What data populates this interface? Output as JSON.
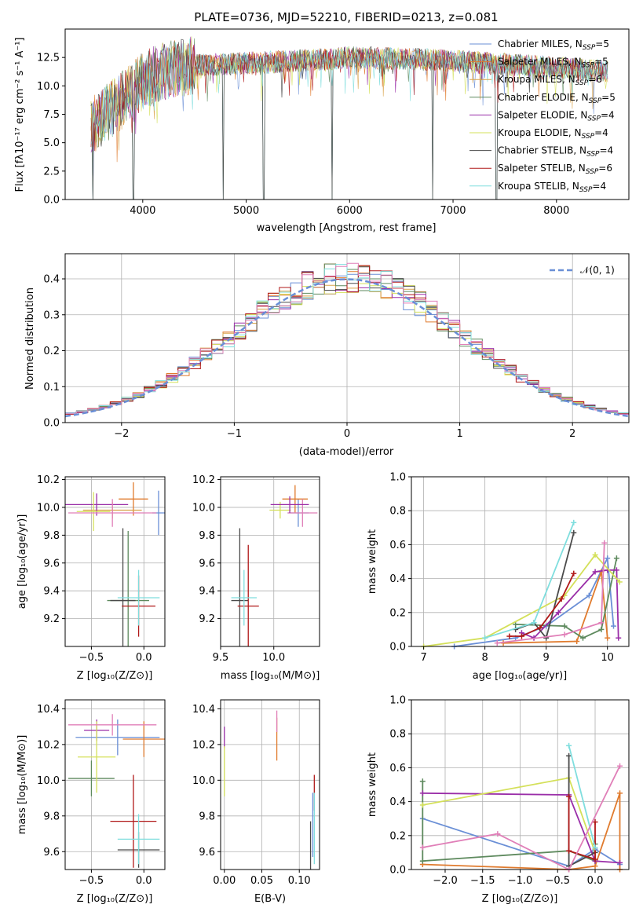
{
  "figure": {
    "title": "PLATE=0736, MJD=52210, FIBERID=0213, z=0.081"
  },
  "colors": [
    "#6a8fd6",
    "#e07b2e",
    "#d9a34a",
    "#5e8a5e",
    "#9a2ea8",
    "#d4e05a",
    "#4a4a4a",
    "#b01818",
    "#7fdede",
    "#e07fb8"
  ],
  "chart_data": [
    {
      "type": "line",
      "id": "spectrum",
      "title": "PLATE=0736, MJD=52210, FIBERID=0213, z=0.081",
      "xlabel": "wavelength [Angstrom, rest frame]",
      "ylabel": "Flux [fλ10⁻¹⁷ erg cm⁻² s⁻¹ A⁻¹]",
      "xlim": [
        3250,
        8700
      ],
      "ylim": [
        0,
        15
      ],
      "xticks": [
        "4000",
        "5000",
        "6000",
        "7000",
        "8000"
      ],
      "yticks": [
        "0.0",
        "2.5",
        "5.0",
        "7.5",
        "10.0",
        "12.5"
      ],
      "legend_position": "top-right",
      "series": [
        {
          "name": "Chabrier MILES, N_SSP=5",
          "label": "Chabrier MILES, N",
          "sub": "SSP",
          "suffix": "=5",
          "color": "#6a8fd6"
        },
        {
          "name": "Salpeter MILES, N_SSP=5",
          "label": "Salpeter MILES, N",
          "sub": "SSP",
          "suffix": "=5",
          "color": "#e07b2e"
        },
        {
          "name": "Kroupa MILES, N_SSP=6",
          "label": "Kroupa MILES, N",
          "sub": "SSP",
          "suffix": "=6",
          "color": "#d9a34a"
        },
        {
          "name": "Chabrier ELODIE, N_SSP=5",
          "label": "Chabrier ELODIE, N",
          "sub": "SSP",
          "suffix": "=5",
          "color": "#5e8a5e"
        },
        {
          "name": "Salpeter ELODIE, N_SSP=4",
          "label": "Salpeter ELODIE, N",
          "sub": "SSP",
          "suffix": "=4",
          "color": "#9a2ea8"
        },
        {
          "name": "Kroupa ELODIE, N_SSP=4",
          "label": "Kroupa ELODIE, N",
          "sub": "SSP",
          "suffix": "=4",
          "color": "#d4e05a"
        },
        {
          "name": "Chabrier STELIB, N_SSP=4",
          "label": "Chabrier STELIB, N",
          "sub": "SSP",
          "suffix": "=4",
          "color": "#4a4a4a"
        },
        {
          "name": "Salpeter STELIB, N_SSP=6",
          "label": "Salpeter STELIB, N",
          "sub": "SSP",
          "suffix": "=6",
          "color": "#b01818"
        },
        {
          "name": "Kroupa STELIB, N_SSP=4",
          "label": "Kroupa STELIB, N",
          "sub": "SSP",
          "suffix": "=4",
          "color": "#7fdede"
        }
      ],
      "continuum": [
        [
          3500,
          6.5
        ],
        [
          3700,
          8.0
        ],
        [
          3900,
          9.5
        ],
        [
          4000,
          10.5
        ],
        [
          4200,
          11.3
        ],
        [
          4500,
          11.8
        ],
        [
          5000,
          12.0
        ],
        [
          5500,
          12.2
        ],
        [
          6000,
          12.5
        ],
        [
          6500,
          12.4
        ],
        [
          7000,
          12.2
        ],
        [
          7500,
          11.9
        ],
        [
          8000,
          11.6
        ],
        [
          8500,
          11.3
        ]
      ],
      "spikes": [
        3520,
        3910,
        4780,
        5170,
        5830,
        6800,
        7420
      ]
    },
    {
      "type": "histogram",
      "id": "residuals",
      "xlabel": "(data-model)/error",
      "ylabel": "Normed distribution",
      "xlim": [
        -2.5,
        2.5
      ],
      "ylim": [
        0,
        0.47
      ],
      "xticks": [
        "−2",
        "−1",
        "0",
        "1",
        "2"
      ],
      "yticks": [
        "0.0",
        "0.1",
        "0.2",
        "0.3",
        "0.4"
      ],
      "legend": "𝒩(0, 1)",
      "legend_position": "top-right",
      "normal_curve": {
        "mean": 0,
        "sigma": 1
      }
    },
    {
      "type": "scatter",
      "id": "age-vs-Z",
      "xlabel": "Z [log₁₀(Z/Z⊙)]",
      "ylabel": "age  [log₁₀(age/yr)]",
      "xlim": [
        -0.75,
        0.2
      ],
      "ylim": [
        9.0,
        10.22
      ],
      "xticks": [
        "−0.5",
        "0.0"
      ],
      "yticks": [
        "9.2",
        "9.4",
        "9.6",
        "9.8",
        "10.0",
        "10.2"
      ],
      "points": [
        {
          "x": 0.14,
          "y": 9.96,
          "ex": 0.06,
          "ey": 0.16,
          "color": "#6a8fd6"
        },
        {
          "x": -0.1,
          "y": 10.06,
          "ex": 0.14,
          "ey": 0.12,
          "color": "#e07b2e"
        },
        {
          "x": -0.3,
          "y": 9.98,
          "ex": 0.28,
          "ey": 0.06,
          "color": "#d9a34a"
        },
        {
          "x": -0.15,
          "y": 9.33,
          "ex": 0.2,
          "ey": 0.5,
          "color": "#5e8a5e"
        },
        {
          "x": -0.45,
          "y": 10.02,
          "ex": 0.3,
          "ey": 0.08,
          "color": "#9a2ea8"
        },
        {
          "x": -0.48,
          "y": 9.97,
          "ex": 0.16,
          "ey": 0.14,
          "color": "#d4e05a"
        },
        {
          "x": -0.2,
          "y": 9.33,
          "ex": 0.12,
          "ey": 0.52,
          "color": "#4a4a4a"
        },
        {
          "x": -0.05,
          "y": 9.29,
          "ex": 0.16,
          "ey": 0.22,
          "color": "#b01818"
        },
        {
          "x": -0.05,
          "y": 9.35,
          "ex": 0.2,
          "ey": 0.2,
          "color": "#7fdede"
        },
        {
          "x": -0.3,
          "y": 9.96,
          "ex": 0.42,
          "ey": 0.1,
          "color": "#e07fb8"
        }
      ]
    },
    {
      "type": "scatter",
      "id": "age-vs-mass",
      "xlabel": "mass [log₁₀(M/M⊙)]",
      "ylabel": "",
      "xlim": [
        9.5,
        10.43
      ],
      "ylim": [
        9.0,
        10.22
      ],
      "xticks": [
        "9.5",
        "10.0"
      ],
      "yticks": [
        "9.2",
        "9.4",
        "9.6",
        "9.8",
        "10.0",
        "10.2"
      ],
      "points": [
        {
          "x": 10.23,
          "y": 9.96,
          "ex": 0.1,
          "ey": 0.1,
          "color": "#6a8fd6"
        },
        {
          "x": 10.2,
          "y": 10.06,
          "ex": 0.12,
          "ey": 0.1,
          "color": "#e07b2e"
        },
        {
          "x": 10.06,
          "y": 9.98,
          "ex": 0.1,
          "ey": 0.06,
          "color": "#d4e05a"
        },
        {
          "x": 9.68,
          "y": 9.33,
          "ex": 0.08,
          "ey": 0.52,
          "color": "#4a4a4a"
        },
        {
          "x": 9.76,
          "y": 9.29,
          "ex": 0.1,
          "ey": 0.44,
          "color": "#b01818"
        },
        {
          "x": 9.72,
          "y": 9.35,
          "ex": 0.12,
          "ey": 0.2,
          "color": "#7fdede"
        },
        {
          "x": 10.27,
          "y": 9.96,
          "ex": 0.14,
          "ey": 0.1,
          "color": "#e07fb8"
        },
        {
          "x": 10.15,
          "y": 10.02,
          "ex": 0.18,
          "ey": 0.06,
          "color": "#9a2ea8"
        }
      ]
    },
    {
      "type": "line",
      "id": "massweight-vs-age",
      "xlabel": "age  [log₁₀(age/yr)]",
      "ylabel": "mass weight",
      "xlim": [
        6.8,
        10.35
      ],
      "ylim": [
        0,
        1.0
      ],
      "xticks": [
        "7",
        "8",
        "9",
        "10"
      ],
      "yticks": [
        "0.0",
        "0.2",
        "0.4",
        "0.6",
        "0.8",
        "1.0"
      ],
      "series": [
        {
          "color": "#6a8fd6",
          "points": [
            [
              7.5,
              0.0
            ],
            [
              8.5,
              0.05
            ],
            [
              9.0,
              0.12
            ],
            [
              9.7,
              0.3
            ],
            [
              10.0,
              0.52
            ],
            [
              10.1,
              0.12
            ]
          ]
        },
        {
          "color": "#e07b2e",
          "points": [
            [
              8.3,
              0.02
            ],
            [
              9.5,
              0.03
            ],
            [
              9.9,
              0.44
            ],
            [
              10.0,
              0.05
            ]
          ]
        },
        {
          "color": "#5e8a5e",
          "points": [
            [
              8.5,
              0.13
            ],
            [
              9.3,
              0.12
            ],
            [
              9.6,
              0.05
            ],
            [
              9.9,
              0.1
            ],
            [
              10.15,
              0.52
            ]
          ]
        },
        {
          "color": "#9a2ea8",
          "points": [
            [
              8.6,
              0.08
            ],
            [
              8.8,
              0.05
            ],
            [
              9.2,
              0.2
            ],
            [
              9.8,
              0.44
            ],
            [
              10.0,
              0.45
            ],
            [
              10.15,
              0.45
            ],
            [
              10.18,
              0.05
            ]
          ]
        },
        {
          "color": "#d4e05a",
          "points": [
            [
              7.0,
              0.0
            ],
            [
              8.0,
              0.05
            ],
            [
              9.3,
              0.3
            ],
            [
              9.8,
              0.54
            ],
            [
              10.2,
              0.38
            ]
          ]
        },
        {
          "color": "#4a4a4a",
          "points": [
            [
              8.5,
              0.1
            ],
            [
              8.8,
              0.14
            ],
            [
              9.0,
              0.05
            ],
            [
              9.45,
              0.67
            ]
          ]
        },
        {
          "color": "#b01818",
          "points": [
            [
              8.4,
              0.06
            ],
            [
              8.6,
              0.06
            ],
            [
              8.9,
              0.11
            ],
            [
              9.25,
              0.28
            ],
            [
              9.45,
              0.43
            ]
          ]
        },
        {
          "color": "#7fdede",
          "points": [
            [
              8.0,
              0.05
            ],
            [
              8.8,
              0.14
            ],
            [
              9.45,
              0.73
            ]
          ]
        },
        {
          "color": "#e07fb8",
          "points": [
            [
              8.2,
              0.02
            ],
            [
              9.3,
              0.07
            ],
            [
              9.9,
              0.14
            ],
            [
              9.95,
              0.61
            ]
          ]
        }
      ]
    },
    {
      "type": "scatter",
      "id": "mass-vs-Z",
      "xlabel": "Z [log₁₀(Z/Z⊙)]",
      "ylabel": "mass [log₁₀(M/M⊙)]",
      "xlim": [
        -0.75,
        0.2
      ],
      "ylim": [
        9.5,
        10.45
      ],
      "xticks": [
        "−0.5",
        "0.0"
      ],
      "yticks": [
        "9.6",
        "9.8",
        "10.0",
        "10.2",
        "10.4"
      ],
      "points": [
        {
          "x": -0.25,
          "y": 10.24,
          "ex": 0.4,
          "ey": 0.1,
          "color": "#6a8fd6"
        },
        {
          "x": 0.0,
          "y": 10.23,
          "ex": 0.2,
          "ey": 0.1,
          "color": "#e07b2e"
        },
        {
          "x": -0.5,
          "y": 10.01,
          "ex": 0.22,
          "ey": 0.1,
          "color": "#5e8a5e"
        },
        {
          "x": -0.45,
          "y": 10.28,
          "ex": 0.12,
          "ey": 0.06,
          "color": "#9a2ea8"
        },
        {
          "x": -0.45,
          "y": 10.13,
          "ex": 0.18,
          "ey": 0.2,
          "color": "#d4e05a"
        },
        {
          "x": -0.05,
          "y": 9.61,
          "ex": 0.2,
          "ey": 0.1,
          "color": "#4a4a4a"
        },
        {
          "x": -0.1,
          "y": 9.77,
          "ex": 0.22,
          "ey": 0.26,
          "color": "#b01818"
        },
        {
          "x": -0.05,
          "y": 9.67,
          "ex": 0.2,
          "ey": 0.14,
          "color": "#7fdede"
        },
        {
          "x": -0.3,
          "y": 10.31,
          "ex": 0.42,
          "ey": 0.06,
          "color": "#e07fb8"
        }
      ]
    },
    {
      "type": "scatter",
      "id": "mass-vs-ebv",
      "xlabel": "E(B-V)",
      "ylabel": "",
      "xlim": [
        -0.005,
        0.127
      ],
      "ylim": [
        9.5,
        10.45
      ],
      "xticks": [
        "0.00",
        "0.05",
        "0.10"
      ],
      "yticks": [
        "9.6",
        "9.8",
        "10.0",
        "10.2",
        "10.4"
      ],
      "points": [
        {
          "x": 0.0,
          "y": 10.24,
          "ey": 0.06,
          "color": "#9a2ea8"
        },
        {
          "x": 0.0,
          "y": 10.05,
          "ey": 0.14,
          "color": "#d4e05a"
        },
        {
          "x": 0.07,
          "y": 10.23,
          "ey": 0.12,
          "color": "#e07b2e"
        },
        {
          "x": 0.07,
          "y": 10.33,
          "ey": 0.06,
          "color": "#e07fb8"
        },
        {
          "x": 0.115,
          "y": 9.61,
          "ey": 0.16,
          "color": "#4a4a4a"
        },
        {
          "x": 0.12,
          "y": 9.93,
          "ey": 0.1,
          "color": "#b01818"
        },
        {
          "x": 0.12,
          "y": 9.73,
          "ey": 0.2,
          "color": "#7fdede"
        },
        {
          "x": 0.118,
          "y": 9.75,
          "ey": 0.18,
          "color": "#6a8fd6"
        }
      ]
    },
    {
      "type": "line",
      "id": "massweight-vs-Z",
      "xlabel": "Z [log₁₀(Z/Z⊙)]",
      "ylabel": "mass weight",
      "xlim": [
        -2.45,
        0.45
      ],
      "ylim": [
        0,
        1.0
      ],
      "xticks": [
        "−2.0",
        "−1.5",
        "−1.0",
        "−0.5",
        "0.0"
      ],
      "yticks": [
        "0.0",
        "0.2",
        "0.4",
        "0.6",
        "0.8",
        "1.0"
      ],
      "series": [
        {
          "color": "#6a8fd6",
          "points": [
            [
              -2.3,
              0.3
            ],
            [
              -0.35,
              0.02
            ],
            [
              0.0,
              0.12
            ],
            [
              0.33,
              0.03
            ]
          ]
        },
        {
          "color": "#e07b2e",
          "points": [
            [
              -2.3,
              0.03
            ],
            [
              -0.35,
              0.0
            ],
            [
              0.0,
              0.02
            ],
            [
              0.33,
              0.45
            ],
            [
              0.33,
              0.0
            ]
          ]
        },
        {
          "color": "#5e8a5e",
          "points": [
            [
              -2.3,
              0.52
            ],
            [
              -2.3,
              0.05
            ],
            [
              -0.35,
              0.11
            ],
            [
              0.0,
              0.05
            ],
            [
              0.0,
              0.15
            ]
          ]
        },
        {
          "color": "#9a2ea8",
          "points": [
            [
              -2.3,
              0.45
            ],
            [
              -0.35,
              0.44
            ],
            [
              0.0,
              0.05
            ],
            [
              0.33,
              0.04
            ]
          ]
        },
        {
          "color": "#d4e05a",
          "points": [
            [
              -2.3,
              0.38
            ],
            [
              -0.35,
              0.54
            ],
            [
              0.0,
              0.1
            ]
          ]
        },
        {
          "color": "#4a4a4a",
          "points": [
            [
              -0.35,
              0.67
            ],
            [
              -0.35,
              0.02
            ],
            [
              0.0,
              0.1
            ]
          ]
        },
        {
          "color": "#b01818",
          "points": [
            [
              -0.35,
              0.43
            ],
            [
              -0.35,
              0.11
            ],
            [
              0.0,
              0.06
            ],
            [
              0.0,
              0.28
            ]
          ]
        },
        {
          "color": "#7fdede",
          "points": [
            [
              -0.35,
              0.73
            ],
            [
              0.0,
              0.13
            ]
          ]
        },
        {
          "color": "#e07fb8",
          "points": [
            [
              -2.3,
              0.13
            ],
            [
              -1.3,
              0.21
            ],
            [
              -0.35,
              0.0
            ],
            [
              0.33,
              0.61
            ]
          ]
        }
      ]
    }
  ]
}
